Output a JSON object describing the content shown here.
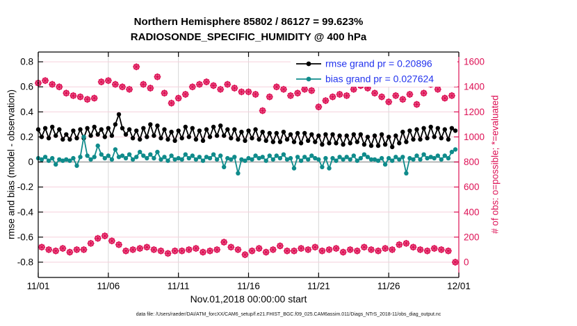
{
  "chart_data": {
    "type": "line",
    "title": "Northern Hemisphere 85802 / 86127 = 99.623%",
    "subtitle": "RADIOSONDE_SPECIFIC_HUMIDITY @ 400 hPa",
    "xlabel": "Nov.01,2018 00:00:00 start",
    "ylabel_left": "rmse and bias (model - observation)",
    "ylabel_right": "# of obs: o=possible; *=evaluated",
    "caption": "data file: /Users/raeder/DAI/ATM_forcXX/CAM6_setup/f.e21.FHIST_BGC.f09_025.CAM6assim.011/Diags_NTrS_2018-11/obs_diag_output.nc",
    "grid": true,
    "legend_position": "top-right-inside",
    "legend": [
      {
        "label": "rmse grand pr = 0.20896",
        "color": "#000000"
      },
      {
        "label": "bias grand pr = 0.027624",
        "color": "#0f8b8b"
      }
    ],
    "colors": {
      "rmse": "#000000",
      "bias": "#0f8b8b",
      "obs": "#dd1155",
      "legend_text": "#2233ee",
      "grid_horizontal": "#f6cfdb",
      "grid_vertical": "#d6d6d6",
      "zero_line": "#b5b5b5",
      "axis_left": "#000000",
      "axis_right": "#dd1155"
    },
    "x_range_days": [
      0,
      30
    ],
    "x_tick_days": [
      0,
      5,
      10,
      15,
      20,
      25,
      30
    ],
    "x_tick_labels": [
      "11/01",
      "11/06",
      "11/11",
      "11/16",
      "11/21",
      "11/26",
      "12/01"
    ],
    "y_left_range": [
      -0.922,
      0.878
    ],
    "y_left_ticks": [
      {
        "value": -0.8,
        "label": "-0.8"
      },
      {
        "value": -0.6,
        "label": "-0.6"
      },
      {
        "value": -0.4,
        "label": "-0.4"
      },
      {
        "value": -0.2,
        "label": "-0.2"
      },
      {
        "value": 0,
        "label": "0"
      },
      {
        "value": 0.2,
        "label": "0.2"
      },
      {
        "value": 0.4,
        "label": "0.4"
      },
      {
        "value": 0.6,
        "label": "0.6"
      },
      {
        "value": 0.8,
        "label": "0.8"
      }
    ],
    "y_right_range": [
      -122,
      1678
    ],
    "y_right_ticks": [
      {
        "value": 0,
        "label": "0"
      },
      {
        "value": 200,
        "label": "200"
      },
      {
        "value": 400,
        "label": "400"
      },
      {
        "value": 600,
        "label": "600"
      },
      {
        "value": 800,
        "label": "800"
      },
      {
        "value": 1000,
        "label": "1000"
      },
      {
        "value": 1200,
        "label": "1200"
      },
      {
        "value": 1400,
        "label": "1400"
      },
      {
        "value": 1600,
        "label": "1600"
      }
    ],
    "series": {
      "time_start_day": 0,
      "time_step_days": 0.25,
      "rmse": [
        0.26,
        0.2,
        0.27,
        0.19,
        0.28,
        0.21,
        0.26,
        0.18,
        0.22,
        0.18,
        0.25,
        0.19,
        0.26,
        0.19,
        0.27,
        0.21,
        0.28,
        0.22,
        0.26,
        0.2,
        0.27,
        0.21,
        0.3,
        0.38,
        0.27,
        0.22,
        0.26,
        0.19,
        0.25,
        0.18,
        0.27,
        0.2,
        0.3,
        0.21,
        0.29,
        0.19,
        0.26,
        0.18,
        0.24,
        0.17,
        0.25,
        0.19,
        0.28,
        0.2,
        0.27,
        0.18,
        0.25,
        0.17,
        0.26,
        0.2,
        0.28,
        0.21,
        0.29,
        0.21,
        0.26,
        0.19,
        0.26,
        0.18,
        0.24,
        0.17,
        0.25,
        0.19,
        0.26,
        0.18,
        0.24,
        0.17,
        0.23,
        0.16,
        0.23,
        0.16,
        0.24,
        0.18,
        0.22,
        0.16,
        0.23,
        0.15,
        0.23,
        0.17,
        0.22,
        0.16,
        0.21,
        0.14,
        0.22,
        0.15,
        0.22,
        0.15,
        0.21,
        0.14,
        0.21,
        0.15,
        0.22,
        0.16,
        0.22,
        0.14,
        0.2,
        0.13,
        0.21,
        0.13,
        0.22,
        0.14,
        0.2,
        0.12,
        0.21,
        0.15,
        0.24,
        0.16,
        0.25,
        0.18,
        0.26,
        0.18,
        0.27,
        0.19,
        0.28,
        0.2,
        0.27,
        0.19,
        0.26,
        0.18,
        0.27,
        0.25
      ],
      "bias": [
        0.03,
        0.02,
        0.04,
        0.01,
        0.03,
        -0.02,
        0.02,
        0.01,
        0.02,
        0.01,
        0.03,
        -0.03,
        0.04,
        0.2,
        0.05,
        0.02,
        0.04,
        0.13,
        0.06,
        0.03,
        0.05,
        0.02,
        0.1,
        0.04,
        0.05,
        0.03,
        0.06,
        0.02,
        0.04,
        0.08,
        0.05,
        0.03,
        0.06,
        0.03,
        0.08,
        0.02,
        0.04,
        0.01,
        0.05,
        0.02,
        0.03,
        0.02,
        0.06,
        0.03,
        0.05,
        0.02,
        0.04,
        0.01,
        0.04,
        0.03,
        0.06,
        0.02,
        0.05,
        -0.04,
        0.03,
        0.02,
        0.04,
        -0.09,
        0.02,
        0.01,
        0.03,
        0.02,
        0.05,
        0.03,
        0.04,
        0.01,
        0.05,
        0.02,
        0.05,
        0.03,
        0.06,
        0.02,
        0.03,
        -0.05,
        0.04,
        0.01,
        0.04,
        0.02,
        0.05,
        0.03,
        0.02,
        -0.04,
        0.03,
        -0.05,
        0.03,
        0.01,
        0.04,
        0.02,
        0.04,
        0.02,
        0.05,
        0.01,
        0.03,
        0.06,
        0.04,
        0.02,
        0.02,
        0.01,
        0.03,
        -0.02,
        0.03,
        0.01,
        0.04,
        0.02,
        0.04,
        -0.09,
        0.03,
        0.02,
        0.05,
        0.02,
        0.06,
        0.03,
        0.04,
        0.03,
        0.05,
        0.02,
        0.05,
        0.03,
        0.08,
        0.1
      ],
      "n_obs": [
        1430,
        120,
        1450,
        100,
        1420,
        90,
        1400,
        110,
        1350,
        80,
        1330,
        100,
        1320,
        100,
        1300,
        150,
        1310,
        190,
        1440,
        210,
        1450,
        170,
        1420,
        140,
        1400,
        90,
        1380,
        100,
        1560,
        110,
        1420,
        120,
        1390,
        100,
        1480,
        90,
        1350,
        70,
        1270,
        90,
        1310,
        90,
        1340,
        100,
        1400,
        110,
        1420,
        80,
        1440,
        90,
        1410,
        100,
        1380,
        160,
        1420,
        120,
        1390,
        100,
        1360,
        60,
        1360,
        90,
        1340,
        110,
        1210,
        80,
        1320,
        100,
        1400,
        130,
        1380,
        90,
        1330,
        90,
        1350,
        110,
        1380,
        100,
        1370,
        120,
        1240,
        90,
        1290,
        100,
        1320,
        110,
        1340,
        80,
        1330,
        100,
        1380,
        90,
        1410,
        120,
        1390,
        100,
        1350,
        90,
        1320,
        110,
        1280,
        100,
        1330,
        140,
        1300,
        150,
        1340,
        120,
        1260,
        100,
        1350,
        90,
        1420,
        110,
        1380,
        100,
        1310,
        90,
        1330,
        0
      ],
      "obs_marker_note": "o (possible) and * (evaluated) markers overlap at identical counts"
    }
  }
}
